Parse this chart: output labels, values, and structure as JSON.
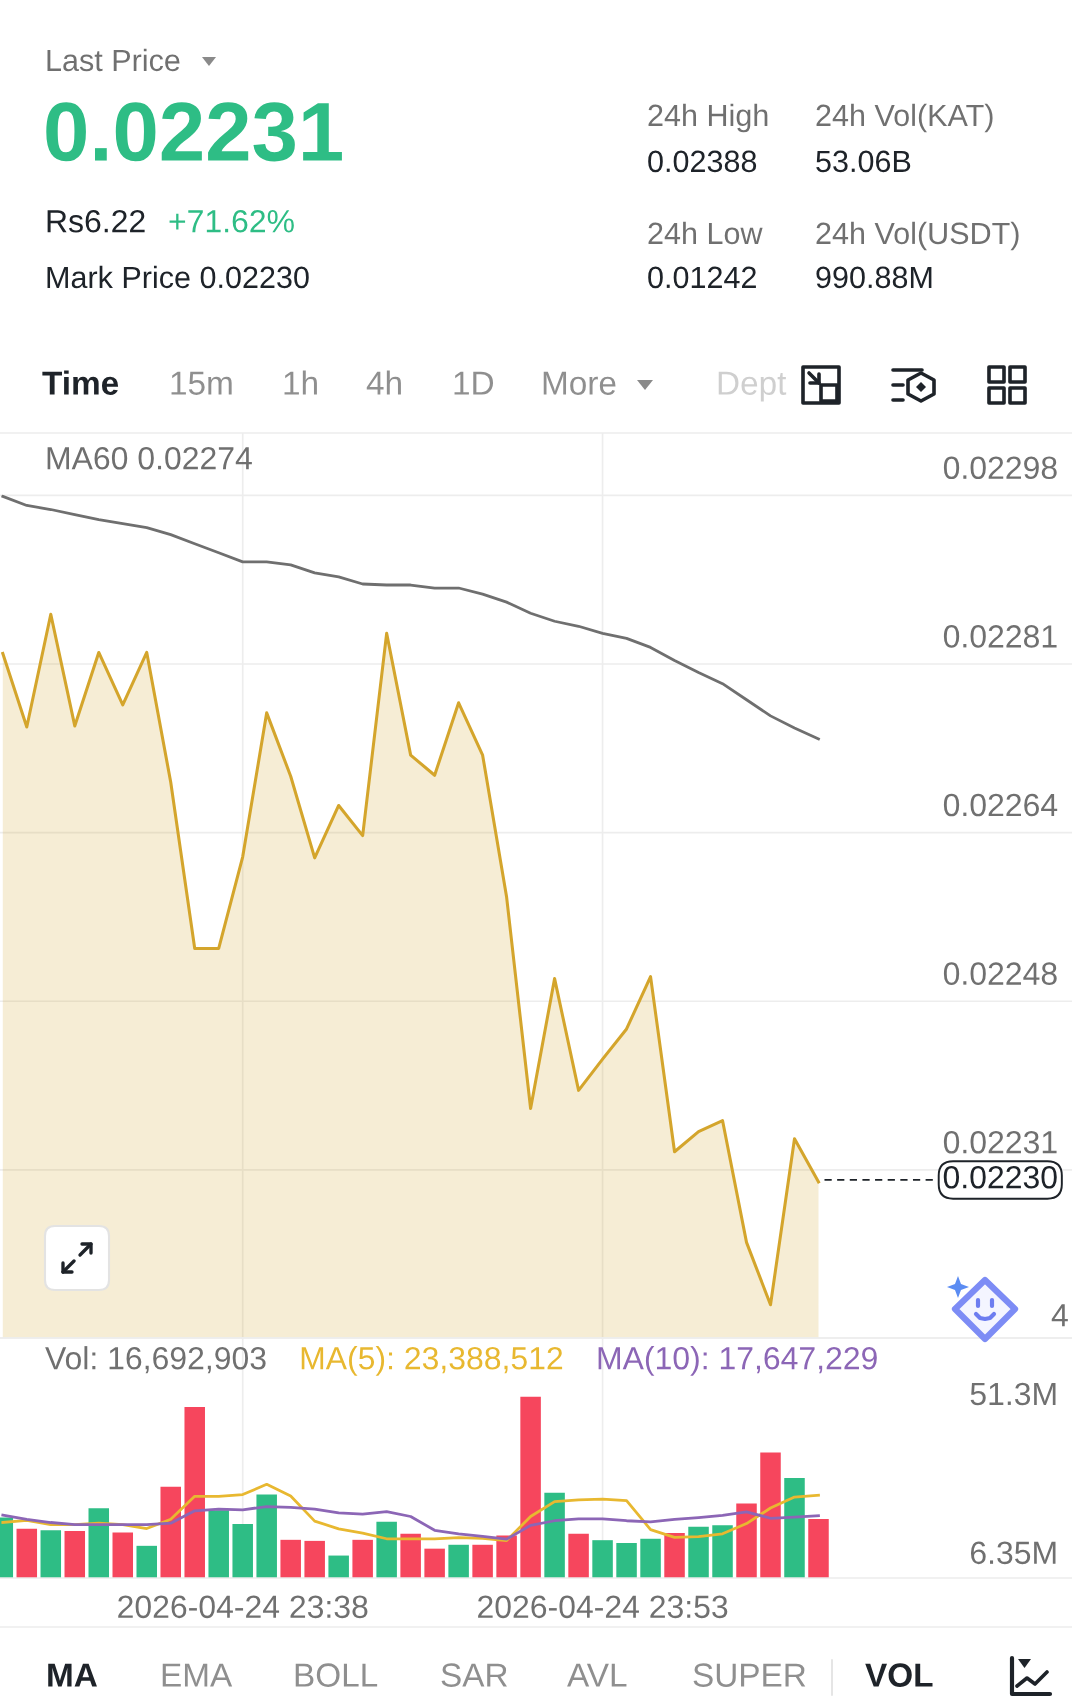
{
  "chart_data": [
    {
      "type": "other",
      "annotations": [
        "Last Price",
        "0.02231",
        "Rs6.22",
        "+71.62%",
        "Mark Price 0.02230",
        "24h High",
        "0.02388",
        "24h Vol(KAT)",
        "53.06B",
        "24h Low",
        "0.01242",
        "24h Vol(USDT)",
        "990.88M",
        "Time",
        "15m",
        "1h",
        "4h",
        "1D",
        "More",
        "Dept"
      ]
    },
    {
      "type": "area",
      "x": [
        "2026-04-24T23:28",
        "2026-04-24T23:29",
        "2026-04-24T23:30",
        "2026-04-24T23:31",
        "2026-04-24T23:32",
        "2026-04-24T23:33",
        "2026-04-24T23:34",
        "2026-04-24T23:35",
        "2026-04-24T23:36",
        "2026-04-24T23:37",
        "2026-04-24T23:38",
        "2026-04-24T23:39",
        "2026-04-24T23:40",
        "2026-04-24T23:41",
        "2026-04-24T23:42",
        "2026-04-24T23:43",
        "2026-04-24T23:44",
        "2026-04-24T23:45",
        "2026-04-24T23:46",
        "2026-04-24T23:47",
        "2026-04-24T23:48",
        "2026-04-24T23:49",
        "2026-04-24T23:50",
        "2026-04-24T23:51",
        "2026-04-24T23:52",
        "2026-04-24T23:53",
        "2026-04-24T23:54",
        "2026-04-24T23:55",
        "2026-04-24T23:56",
        "2026-04-24T23:57",
        "2026-04-24T23:58",
        "2026-04-24T23:59",
        "2026-04-25T00:00",
        "2026-04-25T00:01",
        "2026-04-25T00:02"
      ],
      "series": [
        {
          "color": "#d4a52c",
          "values": [
            0.022823,
            0.02275,
            0.022862,
            0.022751,
            0.022824,
            0.022772,
            0.022824,
            0.022695,
            0.02253,
            0.02253,
            0.022621,
            0.022764,
            0.022701,
            0.02262,
            0.022672,
            0.022642,
            0.022843,
            0.022722,
            0.022702,
            0.022774,
            0.022722,
            0.022581,
            0.022371,
            0.0225,
            0.022389,
            0.02242,
            0.02245,
            0.022502,
            0.022328,
            0.022348,
            0.022359,
            0.022238,
            0.022176,
            0.022341,
            0.022298
          ]
        },
        {
          "type": "line",
          "name": "MA60 0.02274",
          "color": "#6f6f6f",
          "values": [
            0.022979,
            0.02297,
            0.022966,
            0.022961,
            0.022956,
            0.022952,
            0.022948,
            0.022941,
            0.022932,
            0.022923,
            0.022914,
            0.022914,
            0.022911,
            0.022903,
            0.022899,
            0.022892,
            0.022891,
            0.022891,
            0.022888,
            0.022888,
            0.022882,
            0.022874,
            0.022863,
            0.022855,
            0.02285,
            0.022843,
            0.022838,
            0.022829,
            0.022816,
            0.022804,
            0.022793,
            0.022777,
            0.022761,
            0.022749,
            0.022738
          ]
        }
      ],
      "xlim": [
        "2026-04-24T23:27:53",
        "2026-04-25T00:12:34"
      ],
      "xticks": [
        {
          "value": "2026-04-24T23:38",
          "label": null
        },
        {
          "value": "2026-04-24T23:53",
          "label": null
        }
      ],
      "ylim": [
        0.022143,
        0.023042
      ],
      "yticks": [
        0.02231,
        {
          "value": 0.0224775,
          "label": "0.02248"
        },
        {
          "value": 0.022645,
          "label": "0.02264"
        },
        {
          "value": 0.0228125,
          "label": "0.02281"
        },
        0.02298
      ],
      "tick_labels": "y",
      "grid": true,
      "legend": "top left",
      "ref_lines": [
        {
          "axis": "y",
          "value": 0.0223,
          "label": "0.02230",
          "color": "#1e2329",
          "line_style": "dashed"
        }
      ],
      "annotations": [
        "4"
      ]
    },
    {
      "type": "bar",
      "x": [
        "2026-04-24T23:28",
        "2026-04-24T23:29",
        "2026-04-24T23:30",
        "2026-04-24T23:31",
        "2026-04-24T23:32",
        "2026-04-24T23:33",
        "2026-04-24T23:34",
        "2026-04-24T23:35",
        "2026-04-24T23:36",
        "2026-04-24T23:37",
        "2026-04-24T23:38",
        "2026-04-24T23:39",
        "2026-04-24T23:40",
        "2026-04-24T23:41",
        "2026-04-24T23:42",
        "2026-04-24T23:43",
        "2026-04-24T23:44",
        "2026-04-24T23:45",
        "2026-04-24T23:46",
        "2026-04-24T23:47",
        "2026-04-24T23:48",
        "2026-04-24T23:49",
        "2026-04-24T23:50",
        "2026-04-24T23:51",
        "2026-04-24T23:52",
        "2026-04-24T23:53",
        "2026-04-24T23:54",
        "2026-04-24T23:55",
        "2026-04-24T23:56",
        "2026-04-24T23:57",
        "2026-04-24T23:58",
        "2026-04-24T23:59",
        "2026-04-25T00:00",
        "2026-04-25T00:01",
        "2026-04-25T00:02"
      ],
      "series": [
        {
          "colors": [
            "#2ebd85",
            "#f6465d",
            "#2ebd85",
            "#f6465d",
            "#2ebd85",
            "#f6465d",
            "#2ebd85",
            "#f6465d",
            "#f6465d",
            "#2ebd85",
            "#2ebd85",
            "#2ebd85",
            "#f6465d",
            "#f6465d",
            "#2ebd85",
            "#f6465d",
            "#2ebd85",
            "#f6465d",
            "#f6465d",
            "#2ebd85",
            "#f6465d",
            "#f6465d",
            "#f6465d",
            "#2ebd85",
            "#f6465d",
            "#2ebd85",
            "#2ebd85",
            "#2ebd85",
            "#f6465d",
            "#2ebd85",
            "#2ebd85",
            "#f6465d",
            "#f6465d",
            "#2ebd85",
            "#f6465d"
          ],
          "values": [
            17100000,
            13900000,
            13500000,
            13300000,
            19700000,
            12900000,
            9100000,
            25800000,
            48400000,
            19200000,
            15300000,
            23600000,
            10800000,
            10500000,
            6350000,
            10800000,
            15900000,
            12500000,
            8300000,
            9400000,
            9400000,
            12000000,
            51300000,
            24100000,
            12500000,
            10700000,
            9900000,
            11100000,
            12700000,
            14500000,
            14900000,
            21100000,
            35500000,
            28300000,
            16692903
          ]
        },
        {
          "type": "line",
          "name": "MA(5): 23,388,512",
          "color": "#e8b830",
          "values": [
            15700000,
            16300000,
            15100000,
            15100000,
            15500000,
            15100000,
            14000000,
            16600000,
            23100000,
            23100000,
            23600000,
            26500000,
            23200000,
            16100000,
            13900000,
            12700000,
            11100000,
            11100000,
            11100000,
            11400000,
            11200000,
            10600000,
            17400000,
            21600000,
            22100000,
            22300000,
            21900000,
            13700000,
            11500000,
            11700000,
            12500000,
            15400000,
            19800000,
            22900000,
            23388512
          ]
        },
        {
          "type": "line",
          "name": "MA(10): 17,647,229",
          "color": "#8c66b6",
          "values": [
            17800000,
            16600000,
            15700000,
            15100000,
            15100000,
            15100000,
            15100000,
            15500000,
            19000000,
            19500000,
            19300000,
            20200000,
            20000000,
            19500000,
            18400000,
            18100000,
            18800000,
            17400000,
            13500000,
            12500000,
            11800000,
            11000000,
            14900000,
            16200000,
            16700000,
            16700000,
            16200000,
            15900000,
            16600000,
            17100000,
            17700000,
            18700000,
            16900000,
            17200000,
            17647229
          ]
        }
      ],
      "xlim": [
        "2026-04-24T23:27:53",
        "2026-04-25T00:12:34"
      ],
      "xticks": [
        {
          "value": "2026-04-24T23:38",
          "label": "2026-04-24 23:38"
        },
        {
          "value": "2026-04-24T23:53",
          "label": "2026-04-24 23:53"
        }
      ],
      "ylim": [
        0,
        67900000
      ],
      "yticks": [
        {
          "value": 6350000,
          "label": "6.35M"
        },
        {
          "value": 51300000,
          "label": "51.3M"
        }
      ],
      "grid": "x",
      "legend": "top",
      "annotations": [
        "Vol: 16,692,903"
      ]
    },
    {
      "type": "other",
      "annotations": [
        "MA",
        "EMA",
        "BOLL",
        "SAR",
        "AVL",
        "SUPER",
        "VOL"
      ]
    }
  ]
}
